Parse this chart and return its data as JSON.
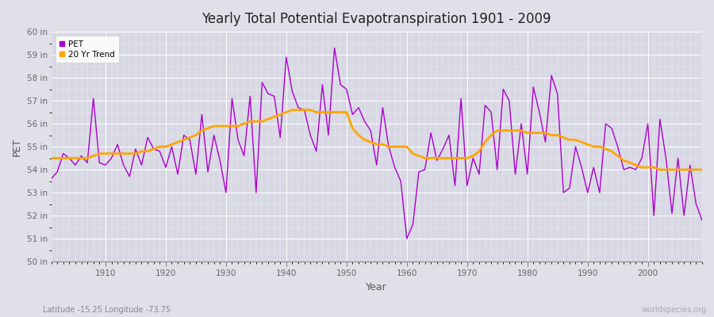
{
  "title": "Yearly Total Potential Evapotranspiration 1901 - 2009",
  "ylabel": "PET",
  "xlabel": "Year",
  "subtitle": "Latitude -15.25 Longitude -73.75",
  "watermark": "worldspecies.org",
  "pet_color": "#AA00CC",
  "trend_color": "#FFA500",
  "bg_color": "#E0E0E8",
  "plot_bg_color": "#D8D8E4",
  "grid_color": "#FFFFFF",
  "ylim": [
    50,
    60
  ],
  "yticks": [
    50,
    51,
    52,
    53,
    54,
    55,
    56,
    57,
    58,
    59,
    60
  ],
  "ytick_labels": [
    "50 in",
    "51 in",
    "52 in",
    "53 in",
    "54 in",
    "55 in",
    "56 in",
    "57 in",
    "58 in",
    "59 in",
    "60 in"
  ],
  "xlim": [
    1901,
    2009
  ],
  "xticks": [
    1910,
    1920,
    1930,
    1940,
    1950,
    1960,
    1970,
    1980,
    1990,
    2000
  ],
  "years": [
    1901,
    1902,
    1903,
    1904,
    1905,
    1906,
    1907,
    1908,
    1909,
    1910,
    1911,
    1912,
    1913,
    1914,
    1915,
    1916,
    1917,
    1918,
    1919,
    1920,
    1921,
    1922,
    1923,
    1924,
    1925,
    1926,
    1927,
    1928,
    1929,
    1930,
    1931,
    1932,
    1933,
    1934,
    1935,
    1936,
    1937,
    1938,
    1939,
    1940,
    1941,
    1942,
    1943,
    1944,
    1945,
    1946,
    1947,
    1948,
    1949,
    1950,
    1951,
    1952,
    1953,
    1954,
    1955,
    1956,
    1957,
    1958,
    1959,
    1960,
    1961,
    1962,
    1963,
    1964,
    1965,
    1966,
    1967,
    1968,
    1969,
    1970,
    1971,
    1972,
    1973,
    1974,
    1975,
    1976,
    1977,
    1978,
    1979,
    1980,
    1981,
    1982,
    1983,
    1984,
    1985,
    1986,
    1987,
    1988,
    1989,
    1990,
    1991,
    1992,
    1993,
    1994,
    1995,
    1996,
    1997,
    1998,
    1999,
    2000,
    2001,
    2002,
    2003,
    2004,
    2005,
    2006,
    2007,
    2008,
    2009
  ],
  "pet": [
    53.6,
    53.9,
    54.7,
    54.5,
    54.2,
    54.6,
    54.3,
    57.1,
    54.3,
    54.2,
    54.5,
    55.1,
    54.2,
    53.7,
    54.9,
    54.2,
    55.4,
    54.9,
    54.8,
    54.1,
    55.0,
    53.8,
    55.5,
    55.3,
    53.8,
    56.4,
    53.9,
    55.5,
    54.4,
    53.0,
    57.1,
    55.3,
    54.6,
    57.2,
    53.0,
    57.8,
    57.3,
    57.2,
    55.4,
    58.9,
    57.4,
    56.7,
    56.6,
    55.5,
    54.8,
    57.7,
    55.5,
    59.3,
    57.7,
    57.5,
    56.4,
    56.7,
    56.1,
    55.7,
    54.2,
    56.7,
    55.0,
    54.1,
    53.5,
    51.0,
    51.6,
    53.9,
    54.0,
    55.6,
    54.4,
    54.9,
    55.5,
    53.3,
    57.1,
    53.3,
    54.5,
    53.8,
    56.8,
    56.5,
    54.0,
    57.5,
    57.0,
    53.8,
    56.0,
    53.8,
    57.6,
    56.5,
    55.2,
    58.1,
    57.3,
    53.0,
    53.2,
    55.0,
    54.1,
    53.0,
    54.1,
    53.0,
    56.0,
    55.8,
    55.0,
    54.0,
    54.1,
    54.0,
    54.5,
    56.0,
    52.0,
    56.2,
    54.5,
    52.1,
    54.5,
    52.0,
    54.2,
    52.5,
    51.8
  ],
  "trend": [
    54.5,
    54.5,
    54.5,
    54.5,
    54.5,
    54.5,
    54.5,
    54.6,
    54.7,
    54.7,
    54.7,
    54.7,
    54.7,
    54.7,
    54.7,
    54.8,
    54.8,
    54.9,
    55.0,
    55.0,
    55.1,
    55.2,
    55.3,
    55.4,
    55.5,
    55.7,
    55.8,
    55.9,
    55.9,
    55.9,
    55.9,
    55.9,
    56.0,
    56.1,
    56.1,
    56.1,
    56.2,
    56.3,
    56.4,
    56.5,
    56.6,
    56.6,
    56.6,
    56.6,
    56.5,
    56.5,
    56.5,
    56.5,
    56.5,
    56.5,
    55.8,
    55.5,
    55.3,
    55.2,
    55.1,
    55.1,
    55.0,
    55.0,
    55.0,
    55.0,
    54.7,
    54.6,
    54.5,
    54.5,
    54.5,
    54.5,
    54.5,
    54.5,
    54.5,
    54.5,
    54.6,
    54.8,
    55.2,
    55.5,
    55.7,
    55.7,
    55.7,
    55.7,
    55.7,
    55.6,
    55.6,
    55.6,
    55.6,
    55.5,
    55.5,
    55.4,
    55.3,
    55.3,
    55.2,
    55.1,
    55.0,
    55.0,
    54.9,
    54.8,
    54.6,
    54.4,
    54.3,
    54.2,
    54.1,
    54.1,
    54.1,
    54.0,
    54.0,
    54.0,
    54.0,
    54.0,
    54.0,
    54.0,
    54.0
  ]
}
